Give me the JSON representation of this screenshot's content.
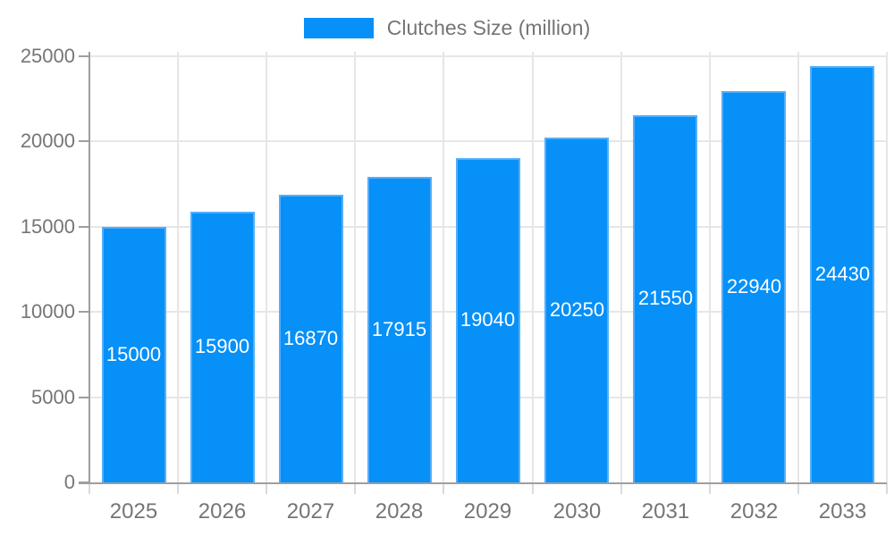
{
  "legend": {
    "label": "Clutches Size (million)"
  },
  "colors": {
    "bar_fill": "#0690f8",
    "bar_border": "#54aef9",
    "grid": "#e6e6e6",
    "axis": "#9e9e9e",
    "tick_text": "#757575",
    "value_text": "#ffffff",
    "background": "#ffffff"
  },
  "chart_data": {
    "type": "bar",
    "title": "Clutches Size (million)",
    "series_name": "Clutches Size (million)",
    "categories": [
      "2025",
      "2026",
      "2027",
      "2028",
      "2029",
      "2030",
      "2031",
      "2032",
      "2033"
    ],
    "values": [
      15000,
      15900,
      16870,
      17915,
      19040,
      20250,
      21550,
      22940,
      24430
    ],
    "value_labels": [
      "15000",
      "15900",
      "16870",
      "17915",
      "19040",
      "20250",
      "21550",
      "22940",
      "24430"
    ],
    "xlabel": "",
    "ylabel": "",
    "ylim": [
      0,
      25000
    ],
    "y_ticks": [
      0,
      5000,
      10000,
      15000,
      20000,
      25000
    ],
    "y_tick_labels": [
      "0",
      "5000",
      "10000",
      "15000",
      "20000",
      "25000"
    ],
    "grid": true,
    "legend_position": "top",
    "value_label_position": "inside-center",
    "bar_color": "#0690f8"
  }
}
